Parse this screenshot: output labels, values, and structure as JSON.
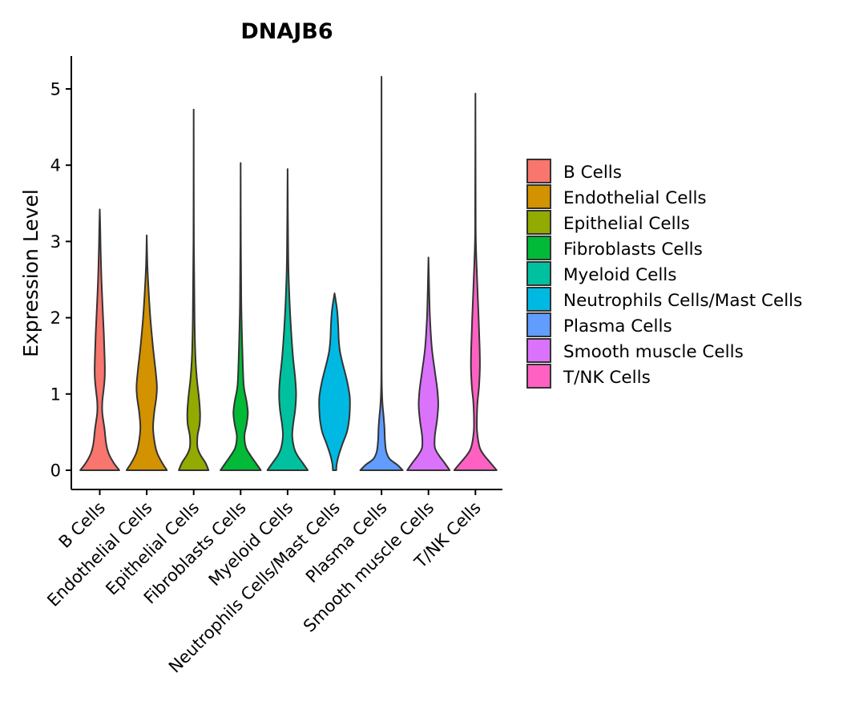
{
  "chart_data": {
    "type": "violin",
    "title": "DNAJB6",
    "xlabel": "",
    "ylabel": "Expression Level",
    "ylim": [
      -0.25,
      5.4
    ],
    "yticks": [
      0,
      1,
      2,
      3,
      4,
      5
    ],
    "grid": false,
    "legend_position": "right",
    "categories": [
      "B Cells",
      "Endothelial Cells",
      "Epithelial Cells",
      "Fibroblasts Cells",
      "Myeloid Cells",
      "Neutrophils Cells/Mast Cells",
      "Plasma Cells",
      "Smooth muscle Cells",
      "T/NK Cells"
    ],
    "colors": [
      "#F8766D",
      "#D39200",
      "#93AA00",
      "#00BA38",
      "#00C19F",
      "#00B9E3",
      "#619CFF",
      "#DB72FB",
      "#FF61C3"
    ],
    "max_values": [
      3.42,
      3.08,
      4.73,
      4.03,
      3.95,
      2.32,
      5.16,
      2.79,
      4.94
    ],
    "density_profiles": [
      [
        [
          0,
          0.92
        ],
        [
          0.1,
          0.65
        ],
        [
          0.22,
          0.42
        ],
        [
          0.35,
          0.3
        ],
        [
          0.55,
          0.22
        ],
        [
          0.75,
          0.12
        ],
        [
          0.9,
          0.12
        ],
        [
          1.05,
          0.18
        ],
        [
          1.2,
          0.23
        ],
        [
          1.35,
          0.24
        ],
        [
          1.55,
          0.22
        ],
        [
          1.8,
          0.19
        ],
        [
          2.1,
          0.14
        ],
        [
          2.5,
          0.08
        ],
        [
          2.9,
          0.04
        ],
        [
          3.2,
          0.02
        ],
        [
          3.42,
          0.0
        ]
      ],
      [
        [
          0,
          0.95
        ],
        [
          0.1,
          0.72
        ],
        [
          0.22,
          0.5
        ],
        [
          0.35,
          0.38
        ],
        [
          0.55,
          0.3
        ],
        [
          0.75,
          0.35
        ],
        [
          0.95,
          0.45
        ],
        [
          1.1,
          0.48
        ],
        [
          1.3,
          0.42
        ],
        [
          1.6,
          0.3
        ],
        [
          2.0,
          0.17
        ],
        [
          2.4,
          0.08
        ],
        [
          2.7,
          0.03
        ],
        [
          3.08,
          0.0
        ]
      ],
      [
        [
          0,
          0.7
        ],
        [
          0.1,
          0.55
        ],
        [
          0.2,
          0.32
        ],
        [
          0.3,
          0.18
        ],
        [
          0.45,
          0.18
        ],
        [
          0.6,
          0.28
        ],
        [
          0.75,
          0.3
        ],
        [
          0.95,
          0.25
        ],
        [
          1.2,
          0.15
        ],
        [
          1.5,
          0.08
        ],
        [
          2.0,
          0.04
        ],
        [
          3.0,
          0.01
        ],
        [
          4.73,
          0.0
        ]
      ],
      [
        [
          0,
          0.95
        ],
        [
          0.1,
          0.7
        ],
        [
          0.2,
          0.45
        ],
        [
          0.3,
          0.25
        ],
        [
          0.45,
          0.18
        ],
        [
          0.6,
          0.28
        ],
        [
          0.75,
          0.34
        ],
        [
          0.9,
          0.28
        ],
        [
          1.1,
          0.15
        ],
        [
          1.4,
          0.1
        ],
        [
          1.8,
          0.06
        ],
        [
          2.2,
          0.03
        ],
        [
          3.0,
          0.01
        ],
        [
          4.03,
          0.0
        ]
      ],
      [
        [
          0,
          0.95
        ],
        [
          0.1,
          0.7
        ],
        [
          0.2,
          0.45
        ],
        [
          0.3,
          0.3
        ],
        [
          0.45,
          0.22
        ],
        [
          0.6,
          0.26
        ],
        [
          0.8,
          0.36
        ],
        [
          1.0,
          0.4
        ],
        [
          1.2,
          0.36
        ],
        [
          1.5,
          0.25
        ],
        [
          1.9,
          0.15
        ],
        [
          2.3,
          0.08
        ],
        [
          2.8,
          0.03
        ],
        [
          3.95,
          0.0
        ]
      ],
      [
        [
          0,
          0.08
        ],
        [
          0.08,
          0.1
        ],
        [
          0.2,
          0.2
        ],
        [
          0.35,
          0.38
        ],
        [
          0.5,
          0.58
        ],
        [
          0.65,
          0.68
        ],
        [
          0.8,
          0.72
        ],
        [
          0.95,
          0.72
        ],
        [
          1.1,
          0.64
        ],
        [
          1.25,
          0.52
        ],
        [
          1.4,
          0.38
        ],
        [
          1.55,
          0.26
        ],
        [
          1.7,
          0.2
        ],
        [
          1.9,
          0.17
        ],
        [
          2.1,
          0.12
        ],
        [
          2.32,
          0.0
        ]
      ],
      [
        [
          0,
          1.0
        ],
        [
          0.07,
          0.75
        ],
        [
          0.15,
          0.38
        ],
        [
          0.25,
          0.22
        ],
        [
          0.4,
          0.16
        ],
        [
          0.55,
          0.14
        ],
        [
          0.7,
          0.1
        ],
        [
          0.9,
          0.04
        ],
        [
          1.2,
          0.01
        ],
        [
          2.0,
          0.005
        ],
        [
          5.16,
          0.0
        ]
      ],
      [
        [
          0,
          1.0
        ],
        [
          0.1,
          0.75
        ],
        [
          0.2,
          0.48
        ],
        [
          0.3,
          0.3
        ],
        [
          0.45,
          0.3
        ],
        [
          0.65,
          0.4
        ],
        [
          0.85,
          0.46
        ],
        [
          1.05,
          0.42
        ],
        [
          1.3,
          0.3
        ],
        [
          1.6,
          0.16
        ],
        [
          2.0,
          0.07
        ],
        [
          2.4,
          0.03
        ],
        [
          2.79,
          0.0
        ]
      ],
      [
        [
          0,
          1.0
        ],
        [
          0.1,
          0.7
        ],
        [
          0.2,
          0.4
        ],
        [
          0.3,
          0.2
        ],
        [
          0.5,
          0.08
        ],
        [
          0.7,
          0.07
        ],
        [
          0.9,
          0.1
        ],
        [
          1.1,
          0.17
        ],
        [
          1.35,
          0.21
        ],
        [
          1.6,
          0.2
        ],
        [
          2.0,
          0.15
        ],
        [
          2.5,
          0.08
        ],
        [
          3.0,
          0.02
        ],
        [
          3.5,
          0.01
        ],
        [
          4.94,
          0.0
        ]
      ]
    ]
  }
}
